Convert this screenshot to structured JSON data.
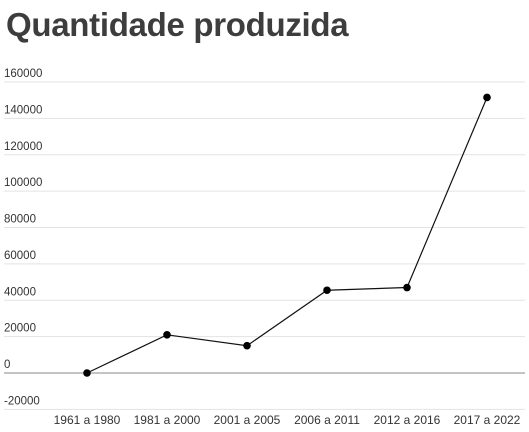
{
  "chart_data": {
    "type": "line",
    "title": "Quantidade produzida",
    "xlabel": "",
    "ylabel": "",
    "categories": [
      "1961 a 1980",
      "1981 a 2000",
      "2001 a 2005",
      "2006 a 2011",
      "2012 a 2016",
      "2017 a 2022"
    ],
    "values": [
      0,
      21000,
      15000,
      45500,
      47000,
      151500
    ],
    "ylim": [
      -20000,
      160000
    ],
    "yticks": [
      -20000,
      0,
      20000,
      40000,
      60000,
      80000,
      100000,
      120000,
      140000,
      160000
    ],
    "grid": true,
    "line_color": "#111111",
    "marker_color": "#000000"
  }
}
